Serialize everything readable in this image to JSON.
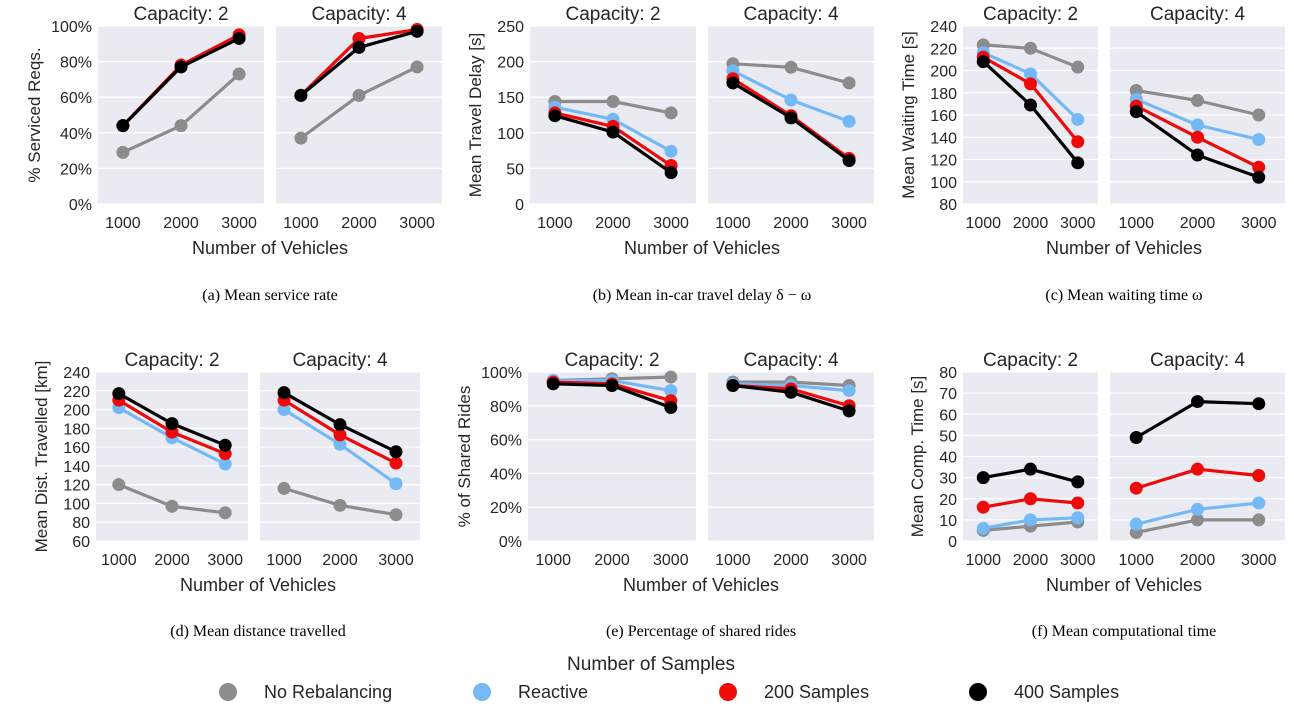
{
  "series_styles": [
    {
      "name": "No Rebalancing",
      "color": "#8c8c8c"
    },
    {
      "name": "Reactive",
      "color": "#74b9f5"
    },
    {
      "name": "200 Samples",
      "color": "#ef0a0a"
    },
    {
      "name": "400 Samples",
      "color": "#000000"
    }
  ],
  "legend": {
    "title": "Number of Samples",
    "items": [
      "No Rebalancing",
      "Reactive",
      "200 Samples",
      "400 Samples"
    ]
  },
  "chart_data": [
    {
      "type": "line",
      "caption": "(a) Mean service rate",
      "xlabel": "Number of Vehicles",
      "ylabel": "% Serviced Reqs.",
      "ylim": [
        0,
        100
      ],
      "yticks": [
        0,
        20,
        40,
        60,
        80,
        100
      ],
      "ytick_labels": [
        "0%",
        "20%",
        "40%",
        "60%",
        "80%",
        "100%"
      ],
      "grid": true,
      "panels": [
        {
          "title": "Capacity: 2",
          "x": [
            1000,
            2000,
            3000
          ],
          "series": [
            {
              "name": "No Rebalancing",
              "values": [
                29,
                44,
                73
              ]
            },
            {
              "name": "Reactive",
              "values": [
                44,
                78,
                94
              ]
            },
            {
              "name": "200 Samples",
              "values": [
                44,
                78,
                95
              ]
            },
            {
              "name": "400 Samples",
              "values": [
                44,
                77,
                93
              ]
            }
          ]
        },
        {
          "title": "Capacity: 4",
          "x": [
            1000,
            2000,
            3000
          ],
          "series": [
            {
              "name": "No Rebalancing",
              "values": [
                37,
                61,
                77
              ]
            },
            {
              "name": "Reactive",
              "values": [
                61,
                93,
                98
              ]
            },
            {
              "name": "200 Samples",
              "values": [
                61,
                93,
                98
              ]
            },
            {
              "name": "400 Samples",
              "values": [
                61,
                88,
                97
              ]
            }
          ]
        }
      ]
    },
    {
      "type": "line",
      "caption": "(b) Mean in-car travel delay δ − ω",
      "xlabel": "Number of Vehicles",
      "ylabel": "Mean Travel Delay [s]",
      "ylim": [
        0,
        250
      ],
      "yticks": [
        0,
        50,
        100,
        150,
        200,
        250
      ],
      "ytick_labels": [
        "0",
        "50",
        "100",
        "150",
        "200",
        "250"
      ],
      "grid": true,
      "panels": [
        {
          "title": "Capacity: 2",
          "x": [
            1000,
            2000,
            3000
          ],
          "series": [
            {
              "name": "No Rebalancing",
              "values": [
                144,
                144,
                128
              ]
            },
            {
              "name": "Reactive",
              "values": [
                136,
                119,
                74
              ]
            },
            {
              "name": "200 Samples",
              "values": [
                128,
                109,
                54
              ]
            },
            {
              "name": "400 Samples",
              "values": [
                124,
                101,
                44
              ]
            }
          ]
        },
        {
          "title": "Capacity: 4",
          "x": [
            1000,
            2000,
            3000
          ],
          "series": [
            {
              "name": "No Rebalancing",
              "values": [
                197,
                192,
                170
              ]
            },
            {
              "name": "Reactive",
              "values": [
                187,
                146,
                116
              ]
            },
            {
              "name": "200 Samples",
              "values": [
                176,
                124,
                64
              ]
            },
            {
              "name": "400 Samples",
              "values": [
                170,
                121,
                61
              ]
            }
          ]
        }
      ]
    },
    {
      "type": "line",
      "caption": "(c) Mean waiting time ω",
      "xlabel": "Number of Vehicles",
      "ylabel": "Mean Waiting Time [s]",
      "ylim": [
        80,
        240
      ],
      "yticks": [
        80,
        100,
        120,
        140,
        160,
        180,
        200,
        220,
        240
      ],
      "ytick_labels": [
        "80",
        "100",
        "120",
        "140",
        "160",
        "180",
        "200",
        "220",
        "240"
      ],
      "grid": true,
      "panels": [
        {
          "title": "Capacity: 2",
          "x": [
            1000,
            2000,
            3000
          ],
          "series": [
            {
              "name": "No Rebalancing",
              "values": [
                223,
                220,
                203
              ]
            },
            {
              "name": "Reactive",
              "values": [
                216,
                197,
                156
              ]
            },
            {
              "name": "200 Samples",
              "values": [
                212,
                188,
                136
              ]
            },
            {
              "name": "400 Samples",
              "values": [
                208,
                169,
                117
              ]
            }
          ]
        },
        {
          "title": "Capacity: 4",
          "x": [
            1000,
            2000,
            3000
          ],
          "series": [
            {
              "name": "No Rebalancing",
              "values": [
                182,
                173,
                160
              ]
            },
            {
              "name": "Reactive",
              "values": [
                174,
                151,
                138
              ]
            },
            {
              "name": "200 Samples",
              "values": [
                168,
                140,
                113
              ]
            },
            {
              "name": "400 Samples",
              "values": [
                163,
                124,
                104
              ]
            }
          ]
        }
      ]
    },
    {
      "type": "line",
      "caption": "(d) Mean distance travelled",
      "xlabel": "Number of Vehicles",
      "ylabel": "Mean Dist. Travelled [km]",
      "ylim": [
        60,
        240
      ],
      "yticks": [
        60,
        80,
        100,
        120,
        140,
        160,
        180,
        200,
        220,
        240
      ],
      "ytick_labels": [
        "60",
        "80",
        "100",
        "120",
        "140",
        "160",
        "180",
        "200",
        "220",
        "240"
      ],
      "grid": true,
      "panels": [
        {
          "title": "Capacity: 2",
          "x": [
            1000,
            2000,
            3000
          ],
          "series": [
            {
              "name": "No Rebalancing",
              "values": [
                120,
                97,
                90
              ]
            },
            {
              "name": "Reactive",
              "values": [
                202,
                170,
                142
              ]
            },
            {
              "name": "200 Samples",
              "values": [
                210,
                176,
                153
              ]
            },
            {
              "name": "400 Samples",
              "values": [
                217,
                185,
                162
              ]
            }
          ]
        },
        {
          "title": "Capacity: 4",
          "x": [
            1000,
            2000,
            3000
          ],
          "series": [
            {
              "name": "No Rebalancing",
              "values": [
                116,
                98,
                88
              ]
            },
            {
              "name": "Reactive",
              "values": [
                200,
                163,
                121
              ]
            },
            {
              "name": "200 Samples",
              "values": [
                210,
                173,
                143
              ]
            },
            {
              "name": "400 Samples",
              "values": [
                218,
                184,
                155
              ]
            }
          ]
        }
      ]
    },
    {
      "type": "line",
      "caption": "(e) Percentage of shared rides",
      "xlabel": "Number of Vehicles",
      "ylabel": "% of Shared Rides",
      "ylim": [
        0,
        100
      ],
      "yticks": [
        0,
        20,
        40,
        60,
        80,
        100
      ],
      "ytick_labels": [
        "0%",
        "20%",
        "40%",
        "60%",
        "80%",
        "100%"
      ],
      "grid": true,
      "panels": [
        {
          "title": "Capacity: 2",
          "x": [
            1000,
            2000,
            3000
          ],
          "series": [
            {
              "name": "No Rebalancing",
              "values": [
                95,
                96,
                97
              ]
            },
            {
              "name": "Reactive",
              "values": [
                95,
                95,
                89
              ]
            },
            {
              "name": "200 Samples",
              "values": [
                94,
                93,
                83
              ]
            },
            {
              "name": "400 Samples",
              "values": [
                93,
                92,
                79
              ]
            }
          ]
        },
        {
          "title": "Capacity: 4",
          "x": [
            1000,
            2000,
            3000
          ],
          "series": [
            {
              "name": "No Rebalancing",
              "values": [
                94,
                94,
                92
              ]
            },
            {
              "name": "Reactive",
              "values": [
                93,
                92,
                89
              ]
            },
            {
              "name": "200 Samples",
              "values": [
                92,
                90,
                80
              ]
            },
            {
              "name": "400 Samples",
              "values": [
                92,
                88,
                77
              ]
            }
          ]
        }
      ]
    },
    {
      "type": "line",
      "caption": "(f) Mean computational time",
      "xlabel": "Number of Vehicles",
      "ylabel": "Mean Comp. Time [s]",
      "ylim": [
        0,
        80
      ],
      "yticks": [
        0,
        10,
        20,
        30,
        40,
        50,
        60,
        70,
        80
      ],
      "ytick_labels": [
        "0",
        "10",
        "20",
        "30",
        "40",
        "50",
        "60",
        "70",
        "80"
      ],
      "grid": true,
      "panels": [
        {
          "title": "Capacity: 2",
          "x": [
            1000,
            2000,
            3000
          ],
          "series": [
            {
              "name": "No Rebalancing",
              "values": [
                5,
                7,
                9
              ]
            },
            {
              "name": "Reactive",
              "values": [
                6,
                10,
                11
              ]
            },
            {
              "name": "200 Samples",
              "values": [
                16,
                20,
                18
              ]
            },
            {
              "name": "400 Samples",
              "values": [
                30,
                34,
                28
              ]
            }
          ]
        },
        {
          "title": "Capacity: 4",
          "x": [
            1000,
            2000,
            3000
          ],
          "series": [
            {
              "name": "No Rebalancing",
              "values": [
                4,
                10,
                10
              ]
            },
            {
              "name": "Reactive",
              "values": [
                8,
                15,
                18
              ]
            },
            {
              "name": "200 Samples",
              "values": [
                25,
                34,
                31
              ]
            },
            {
              "name": "400 Samples",
              "values": [
                49,
                66,
                65
              ]
            }
          ]
        }
      ]
    }
  ]
}
